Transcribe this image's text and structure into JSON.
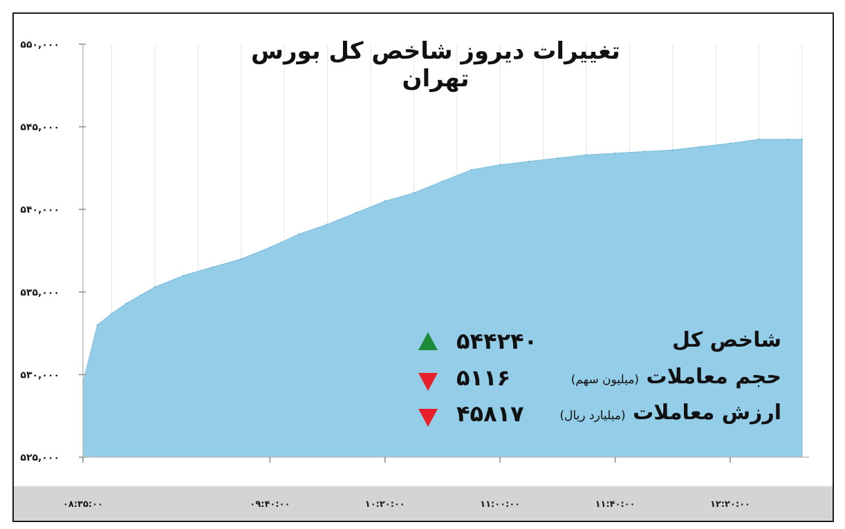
{
  "chart_data": {
    "type": "area",
    "title": "تغییرات دیروز شاخص کل بورس تهران",
    "x": [
      "08:35:00",
      "08:40:00",
      "08:45:00",
      "08:50:00",
      "08:55:00",
      "09:00:00",
      "09:10:00",
      "09:20:00",
      "09:30:00",
      "09:40:00",
      "09:50:00",
      "10:00:00",
      "10:10:00",
      "10:20:00",
      "10:30:00",
      "10:40:00",
      "10:50:00",
      "11:00:00",
      "11:10:00",
      "11:20:00",
      "11:30:00",
      "11:40:00",
      "11:50:00",
      "12:00:00",
      "12:10:00",
      "12:20:00",
      "12:30:00",
      "12:40:00",
      "12:45:00"
    ],
    "values": [
      529500,
      533000,
      533700,
      534300,
      534800,
      535300,
      536000,
      536500,
      537000,
      537700,
      538500,
      539100,
      539800,
      540500,
      541000,
      541700,
      542400,
      542700,
      542900,
      543100,
      543300,
      543400,
      543500,
      543600,
      543800,
      544000,
      544240,
      544240,
      544240
    ],
    "xticks": [
      "۰۸:۳۵:۰۰",
      "۰۹:۴۰:۰۰",
      "۱۰:۲۰:۰۰",
      "۱۱:۰۰:۰۰",
      "۱۱:۴۰:۰۰",
      "۱۲:۲۰:۰۰"
    ],
    "xtick_positions": [
      "08:35:00",
      "09:40:00",
      "10:20:00",
      "11:00:00",
      "11:40:00",
      "12:20:00"
    ],
    "yticks": [
      "۵۲۵,۰۰۰",
      "۵۳۰,۰۰۰",
      "۵۳۵,۰۰۰",
      "۵۴۰,۰۰۰",
      "۵۴۵,۰۰۰",
      "۵۵۰,۰۰۰"
    ],
    "ytick_values": [
      525000,
      530000,
      535000,
      540000,
      545000,
      550000
    ],
    "ylim": [
      525000,
      550000
    ],
    "grid": true,
    "fill_color": "#93cde8",
    "axis_band_color": "#d4d4d4"
  },
  "stats": [
    {
      "label": "شاخص کل",
      "note": "",
      "value": "۵۴۴۲۴۰",
      "direction": "up",
      "color": "#1d8a3a"
    },
    {
      "label": "حجم معاملات",
      "note": "(میلیون سهم)",
      "value": "۵۱۱۶",
      "direction": "down",
      "color": "#e8202a"
    },
    {
      "label": "ارزش معاملات",
      "note": "(میلیارد ریال)",
      "value": "۴۵۸۱۷",
      "direction": "down",
      "color": "#e8202a"
    }
  ]
}
